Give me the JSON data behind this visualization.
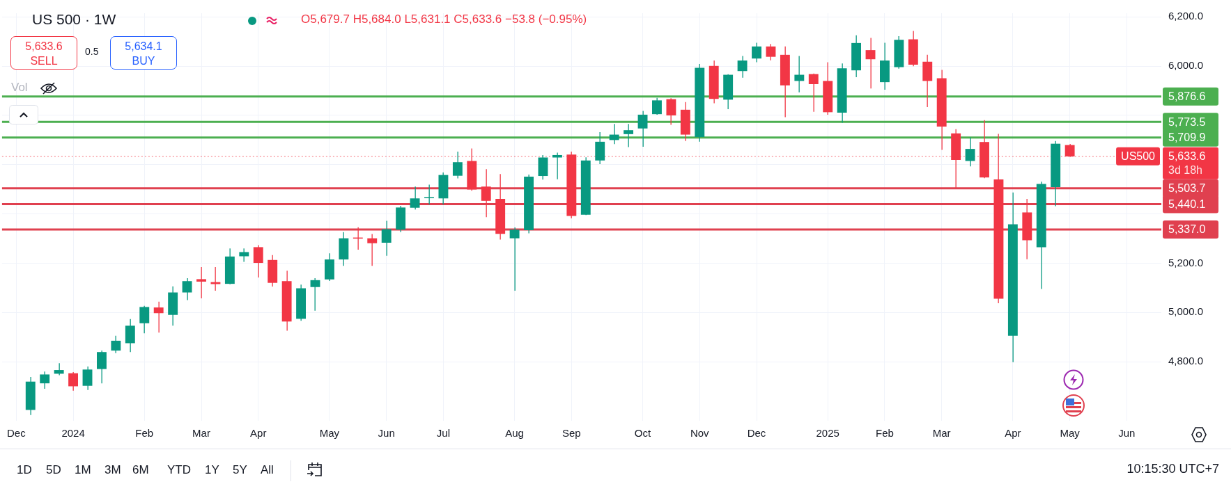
{
  "chart_data": {
    "type": "candlestick",
    "title": "US 500 · 1W",
    "subtitle": "O5,679.7 H5,684.0 L5,631.1 C5,633.6 −53.8 (−0.95%)",
    "x": [
      "2023-12-11",
      "2023-12-18",
      "2023-12-25",
      "2024-01-01",
      "2024-01-08",
      "2024-01-15",
      "2024-01-22",
      "2024-01-29",
      "2024-02-05",
      "2024-02-12",
      "2024-02-19",
      "2024-02-26",
      "2024-03-04",
      "2024-03-11",
      "2024-03-18",
      "2024-03-25",
      "2024-04-01",
      "2024-04-08",
      "2024-04-15",
      "2024-04-22",
      "2024-04-29",
      "2024-05-06",
      "2024-05-13",
      "2024-05-20",
      "2024-05-27",
      "2024-06-03",
      "2024-06-10",
      "2024-06-17",
      "2024-06-24",
      "2024-07-01",
      "2024-07-08",
      "2024-07-15",
      "2024-07-22",
      "2024-07-29",
      "2024-08-05",
      "2024-08-12",
      "2024-08-19",
      "2024-08-26",
      "2024-09-02",
      "2024-09-09",
      "2024-09-16",
      "2024-09-23",
      "2024-09-30",
      "2024-10-07",
      "2024-10-14",
      "2024-10-21",
      "2024-10-28",
      "2024-11-04",
      "2024-11-11",
      "2024-11-18",
      "2024-11-25",
      "2024-12-02",
      "2024-12-09",
      "2024-12-16",
      "2024-12-23",
      "2024-12-30",
      "2025-01-06",
      "2025-01-13",
      "2025-01-20",
      "2025-01-27",
      "2025-02-03",
      "2025-02-10",
      "2025-02-17",
      "2025-02-24",
      "2025-03-03",
      "2025-03-10",
      "2025-03-17",
      "2025-03-24",
      "2025-03-31",
      "2025-04-07",
      "2025-04-14",
      "2025-04-21",
      "2025-04-28",
      "2025-05-05"
    ],
    "ohlc": [
      [
        4604,
        4738,
        4583,
        4719
      ],
      [
        4712,
        4760,
        4690,
        4748
      ],
      [
        4751,
        4794,
        4745,
        4766
      ],
      [
        4753,
        4758,
        4682,
        4700
      ],
      [
        4702,
        4780,
        4685,
        4768
      ],
      [
        4770,
        4845,
        4712,
        4839
      ],
      [
        4845,
        4905,
        4835,
        4885
      ],
      [
        4875,
        4973,
        4839,
        4946
      ],
      [
        4956,
        5027,
        4915,
        5022
      ],
      [
        5020,
        5044,
        4918,
        4997
      ],
      [
        4990,
        5106,
        4946,
        5081
      ],
      [
        5081,
        5139,
        5050,
        5127
      ],
      [
        5135,
        5184,
        5057,
        5125
      ],
      [
        5123,
        5184,
        5088,
        5115
      ],
      [
        5116,
        5260,
        5114,
        5227
      ],
      [
        5228,
        5260,
        5205,
        5245
      ],
      [
        5265,
        5273,
        5142,
        5201
      ],
      [
        5213,
        5233,
        5105,
        5120
      ],
      [
        5127,
        5169,
        4926,
        4963
      ],
      [
        4974,
        5113,
        4966,
        5098
      ],
      [
        5103,
        5139,
        5007,
        5131
      ],
      [
        5134,
        5240,
        5128,
        5215
      ],
      [
        5215,
        5326,
        5189,
        5301
      ],
      [
        5304,
        5346,
        5255,
        5300
      ],
      [
        5301,
        5318,
        5189,
        5281
      ],
      [
        5283,
        5372,
        5230,
        5338
      ],
      [
        5336,
        5433,
        5326,
        5426
      ],
      [
        5425,
        5511,
        5418,
        5463
      ],
      [
        5466,
        5519,
        5438,
        5468
      ],
      [
        5463,
        5568,
        5438,
        5558
      ],
      [
        5555,
        5653,
        5544,
        5610
      ],
      [
        5615,
        5666,
        5494,
        5499
      ],
      [
        5511,
        5582,
        5387,
        5453
      ],
      [
        5461,
        5562,
        5296,
        5319
      ],
      [
        5301,
        5345,
        5088,
        5336
      ],
      [
        5334,
        5560,
        5321,
        5551
      ],
      [
        5554,
        5639,
        5539,
        5629
      ],
      [
        5629,
        5649,
        5541,
        5639
      ],
      [
        5641,
        5653,
        5382,
        5392
      ],
      [
        5397,
        5630,
        5395,
        5617
      ],
      [
        5617,
        5732,
        5602,
        5693
      ],
      [
        5700,
        5765,
        5683,
        5722
      ],
      [
        5724,
        5765,
        5671,
        5740
      ],
      [
        5747,
        5818,
        5673,
        5803
      ],
      [
        5805,
        5871,
        5803,
        5861
      ],
      [
        5866,
        5870,
        5762,
        5800
      ],
      [
        5823,
        5854,
        5696,
        5722
      ],
      [
        5712,
        6009,
        5693,
        5993
      ],
      [
        6001,
        6023,
        5849,
        5867
      ],
      [
        5864,
        5967,
        5825,
        5965
      ],
      [
        5980,
        6041,
        5953,
        6023
      ],
      [
        6031,
        6095,
        6016,
        6080
      ],
      [
        6080,
        6090,
        6024,
        6038
      ],
      [
        6046,
        6080,
        5793,
        5922
      ],
      [
        5940,
        6041,
        5894,
        5965
      ],
      [
        5968,
        5970,
        5815,
        5927
      ],
      [
        5940,
        6016,
        5803,
        5813
      ],
      [
        5811,
        6011,
        5770,
        5991
      ],
      [
        5983,
        6125,
        5955,
        6094
      ],
      [
        6065,
        6115,
        5909,
        6028
      ],
      [
        5935,
        6095,
        5904,
        6023
      ],
      [
        5996,
        6122,
        5990,
        6107
      ],
      [
        6109,
        6143,
        6000,
        6006
      ],
      [
        6018,
        6046,
        5834,
        5940
      ],
      [
        5951,
        5985,
        5660,
        5755
      ],
      [
        5727,
        5744,
        5506,
        5619
      ],
      [
        5615,
        5711,
        5593,
        5664
      ],
      [
        5692,
        5781,
        5545,
        5548
      ],
      [
        5540,
        5725,
        5037,
        5056
      ],
      [
        4905,
        5487,
        4798,
        5358
      ],
      [
        5406,
        5461,
        5216,
        5293
      ],
      [
        5265,
        5531,
        5095,
        5522
      ],
      [
        5509,
        5696,
        5431,
        5685
      ],
      [
        5679.7,
        5684.0,
        5631.1,
        5633.6
      ]
    ],
    "colors": [
      "#089981",
      "#089981",
      "#089981",
      "#f23645",
      "#089981",
      "#089981",
      "#089981",
      "#089981",
      "#089981",
      "#f23645",
      "#089981",
      "#089981",
      "#f23645",
      "#f23645",
      "#089981",
      "#089981",
      "#f23645",
      "#f23645",
      "#f23645",
      "#089981",
      "#089981",
      "#089981",
      "#089981",
      "#f23645",
      "#f23645",
      "#089981",
      "#089981",
      "#089981",
      "#089981",
      "#089981",
      "#089981",
      "#f23645",
      "#f23645",
      "#f23645",
      "#089981",
      "#089981",
      "#089981",
      "#089981",
      "#f23645",
      "#089981",
      "#089981",
      "#089981",
      "#089981",
      "#089981",
      "#089981",
      "#f23645",
      "#f23645",
      "#089981",
      "#f23645",
      "#089981",
      "#089981",
      "#089981",
      "#f23645",
      "#f23645",
      "#089981",
      "#f23645",
      "#f23645",
      "#089981",
      "#089981",
      "#f23645",
      "#089981",
      "#089981",
      "#f23645",
      "#f23645",
      "#f23645",
      "#f23645",
      "#089981",
      "#f23645",
      "#f23645",
      "#089981",
      "#f23645",
      "#089981",
      "#089981",
      "#f23645"
    ],
    "xlim": [
      "2023-11-27",
      "2025-06-19"
    ],
    "xticks": [
      {
        "value": "2023-12-04",
        "label": "Dec"
      },
      {
        "value": "2024-01-01",
        "label": "2024"
      },
      {
        "value": "2024-02-05",
        "label": "Feb"
      },
      {
        "value": "2024-03-04",
        "label": "Mar"
      },
      {
        "value": "2024-04-01",
        "label": "Apr"
      },
      {
        "value": "2024-05-06",
        "label": "May"
      },
      {
        "value": "2024-06-03",
        "label": "Jun"
      },
      {
        "value": "2024-07-01",
        "label": "Jul"
      },
      {
        "value": "2024-08-05",
        "label": "Aug"
      },
      {
        "value": "2024-09-02",
        "label": "Sep"
      },
      {
        "value": "2024-10-07",
        "label": "Oct"
      },
      {
        "value": "2024-11-04",
        "label": "Nov"
      },
      {
        "value": "2024-12-02",
        "label": "Dec"
      },
      {
        "value": "2025-01-06",
        "label": "2025"
      },
      {
        "value": "2025-02-03",
        "label": "Feb"
      },
      {
        "value": "2025-03-03",
        "label": "Mar"
      },
      {
        "value": "2025-04-07",
        "label": "Apr"
      },
      {
        "value": "2025-05-05",
        "label": "May"
      },
      {
        "value": "2025-06-02",
        "label": "Jun"
      }
    ],
    "ylim": [
      4560,
      6215
    ],
    "yticks": [
      {
        "value": 4800,
        "label": "4,800.0"
      },
      {
        "value": 5000,
        "label": "5,000.0"
      },
      {
        "value": 5200,
        "label": "5,200.0"
      },
      {
        "value": 5400,
        "label": null
      },
      {
        "value": 5600,
        "label": null
      },
      {
        "value": 5800,
        "label": null
      },
      {
        "value": 6000,
        "label": "6,000.0"
      },
      {
        "value": 6200,
        "label": "6,200.0"
      }
    ],
    "grid": true,
    "ref_lines": [
      {
        "axis": "y",
        "value": 5876.6,
        "label": "5,876.6",
        "color": "#4caf50"
      },
      {
        "axis": "y",
        "value": 5773.5,
        "label": "5,773.5",
        "color": "#4caf50"
      },
      {
        "axis": "y",
        "value": 5709.9,
        "label": "5,709.9",
        "color": "#4caf50"
      },
      {
        "axis": "y",
        "value": 5633.6,
        "label": "5,633.6",
        "color": "#f23645",
        "line_style": "dotted"
      },
      {
        "axis": "y",
        "value": 5503.7,
        "label": "5,503.7",
        "color": "#e0404f"
      },
      {
        "axis": "y",
        "value": 5440.1,
        "label": "5,440.1",
        "color": "#e0404f"
      },
      {
        "axis": "y",
        "value": 5337.0,
        "label": "5,337.0",
        "color": "#e0404f"
      }
    ],
    "annotations": [
      "5,633.6",
      "SELL",
      "0.5",
      "5,634.1",
      "BUY",
      "Vol",
      "US500",
      "3d 18h",
      "1D",
      "5D",
      "1M",
      "3M",
      "6M",
      "YTD",
      "1Y",
      "5Y",
      "All",
      "10:15:30 UTC+7"
    ]
  }
}
